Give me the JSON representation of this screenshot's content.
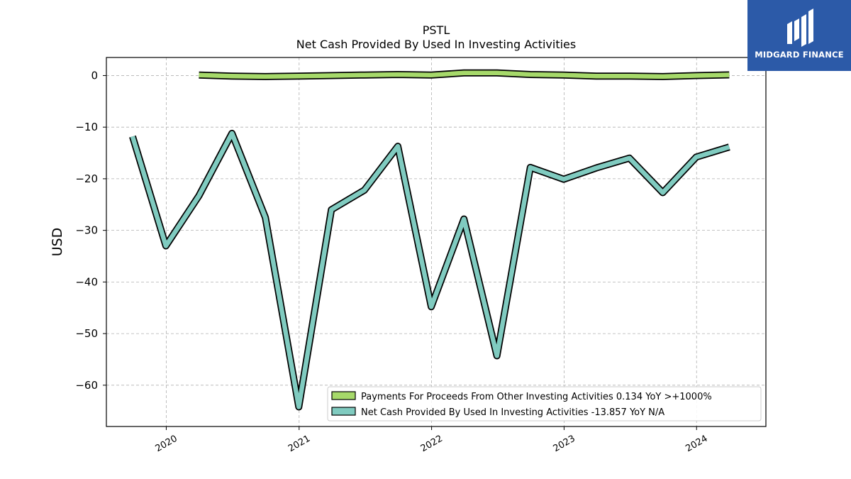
{
  "chart_data": {
    "type": "line",
    "title": "PSTL",
    "subtitle": "Net Cash Provided By Used In Investing Activities",
    "ylabel": "USD",
    "xlabel": "",
    "ylim": [
      -68,
      3.5
    ],
    "yticks": [
      0,
      -10,
      -20,
      -30,
      -40,
      -50,
      -60
    ],
    "ytick_labels": [
      "0",
      "−10",
      "−20",
      "−30",
      "−40",
      "−50",
      "−60"
    ],
    "xlim": [
      "2019-07-20",
      "2024-07-10"
    ],
    "xticks": [
      "2020-01-01",
      "2021-01-01",
      "2022-01-01",
      "2023-01-01",
      "2024-01-01"
    ],
    "xtick_labels": [
      "2020",
      "2021",
      "2022",
      "2023",
      "2024"
    ],
    "grid": true,
    "legend_position": "bottom-right",
    "series": [
      {
        "name": "Payments For Proceeds From Other Investing Activities",
        "legend_label": "Payments For Proceeds From Other Investing Activities  0.134 YoY >+1000%",
        "color": "#a6d96a",
        "x": [
          "2020-03-31",
          "2020-06-30",
          "2020-09-30",
          "2020-12-31",
          "2021-03-31",
          "2021-06-30",
          "2021-09-30",
          "2021-12-31",
          "2022-03-31",
          "2022-06-30",
          "2022-09-30",
          "2022-12-31",
          "2023-03-31",
          "2023-06-30",
          "2023-09-30",
          "2023-12-31",
          "2024-03-31"
        ],
        "y": [
          0.1,
          -0.1,
          -0.2,
          -0.1,
          0.0,
          0.1,
          0.2,
          0.1,
          0.5,
          0.5,
          0.2,
          0.1,
          -0.1,
          -0.1,
          -0.2,
          0.0,
          0.134
        ]
      },
      {
        "name": "Net Cash Provided By Used In Investing Activities",
        "legend_label": "Net Cash Provided By Used In Investing Activities  -13.857 YoY N/A",
        "color": "#80cbc0",
        "x": [
          "2019-09-30",
          "2019-12-31",
          "2020-03-31",
          "2020-06-30",
          "2020-09-30",
          "2020-12-31",
          "2021-03-31",
          "2021-06-30",
          "2021-09-30",
          "2021-12-31",
          "2022-03-31",
          "2022-06-30",
          "2022-09-30",
          "2022-12-31",
          "2023-03-31",
          "2023-06-30",
          "2023-09-30",
          "2023-12-31",
          "2024-03-31"
        ],
        "y": [
          -11.8,
          -33.0,
          -23.3,
          -11.2,
          -27.5,
          -64.2,
          -26.0,
          -22.2,
          -13.7,
          -44.8,
          -27.8,
          -54.3,
          -17.8,
          -20.1,
          -17.9,
          -16.0,
          -22.7,
          -15.8,
          -13.857
        ]
      }
    ]
  },
  "logo": {
    "text": "MIDGARD FINANCE",
    "color": "#2c5aa8"
  }
}
